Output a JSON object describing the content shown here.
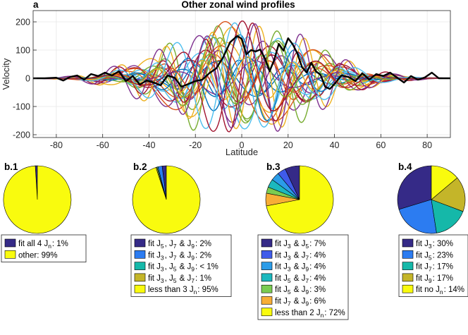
{
  "chart_data": [
    {
      "type": "line",
      "panel": "a",
      "title": "Other zonal wind profiles",
      "xlabel": "Latitude",
      "ylabel": "Velocity",
      "xlim": [
        -90,
        90
      ],
      "ylim": [
        -210,
        240
      ],
      "xticks": [
        -80,
        -60,
        -40,
        -20,
        0,
        20,
        40,
        60,
        80
      ],
      "yticks": [
        -200,
        -100,
        0,
        100,
        200
      ],
      "grid": true,
      "legend": "none",
      "series_count_note": "",
      "highlight_series": {
        "color": "#000000",
        "x": [
          -90,
          -85,
          -80,
          -77,
          -74,
          -71,
          -68,
          -65,
          -62,
          -59,
          -56,
          -53,
          -50,
          -47,
          -44,
          -41,
          -38,
          -35,
          -32,
          -29,
          -26,
          -23,
          -20,
          -17,
          -14,
          -11,
          -8,
          -5,
          -2,
          0,
          2,
          4,
          6,
          8,
          10,
          12,
          14,
          16,
          18,
          20,
          22,
          24,
          26,
          28,
          30,
          32,
          34,
          36,
          38,
          40,
          43,
          46,
          49,
          52,
          55,
          58,
          61,
          64,
          67,
          70,
          73,
          76,
          79,
          82,
          85,
          90
        ],
        "y": [
          0,
          0,
          2,
          -8,
          5,
          10,
          -5,
          15,
          8,
          20,
          10,
          25,
          -10,
          8,
          -22,
          -8,
          -15,
          -25,
          10,
          2,
          -30,
          -20,
          -10,
          -5,
          18,
          35,
          75,
          128,
          150,
          140,
          85,
          100,
          95,
          102,
          70,
          25,
          65,
          122,
          98,
          142,
          120,
          88,
          40,
          20,
          55,
          25,
          12,
          -30,
          -38,
          -20,
          10,
          5,
          -10,
          18,
          -5,
          15,
          8,
          20,
          2,
          -15,
          8,
          -5,
          3,
          20,
          0,
          0
        ]
      },
      "colors": [
        "#0072BD",
        "#D95319",
        "#EDB120",
        "#7E2F8E",
        "#77AC30",
        "#4DBEEE",
        "#A2142F"
      ]
    },
    {
      "type": "pie",
      "panel": "b.1",
      "labels": [
        "fit all 4 J_n: 1%",
        "other: 99%"
      ],
      "values": [
        1,
        99
      ],
      "colors": [
        "#352A87",
        "#F9FB0E"
      ]
    },
    {
      "type": "pie",
      "panel": "b.2",
      "labels": [
        "fit J_5, J_7 & J_9: 2%",
        "fit J_3, J_7 & J_9: 2%",
        "fit J_3, J_5 & J_9: < 1%",
        "fit J_3, J_5 & J_7: 1%",
        "less than 3 J_n: 95%"
      ],
      "values": [
        2,
        2,
        0.5,
        0.5,
        95
      ],
      "colors": [
        "#352A87",
        "#2C7CF1",
        "#15B8A9",
        "#C4B529",
        "#F9FB0E"
      ]
    },
    {
      "type": "pie",
      "panel": "b.3",
      "labels": [
        "fit J_3 & J_5: 7%",
        "fit J_3 & J_7: 4%",
        "fit J_3 & J_9: 4%",
        "fit J_5 & J_7: 4%",
        "fit J_5 & J_9: 3%",
        "fit J_7 & J_9: 6%",
        "less than 2 J_n: 72%"
      ],
      "values": [
        7,
        4,
        4,
        4,
        3,
        6,
        72
      ],
      "colors": [
        "#352A87",
        "#3F5BEA",
        "#2B9CE8",
        "#1CB8BE",
        "#7ACC51",
        "#F7AE37",
        "#F9FB0E"
      ]
    },
    {
      "type": "pie",
      "panel": "b.4",
      "labels": [
        "fit J_3: 30%",
        "fit J_5: 23%",
        "fit J_7: 17%",
        "fit J_9: 17%",
        "fit no J_n: 14%"
      ],
      "values": [
        30,
        23,
        17,
        17,
        14
      ],
      "colors": [
        "#352A87",
        "#2C7CF1",
        "#15B8A9",
        "#C4B529",
        "#F9FB0E"
      ]
    }
  ]
}
